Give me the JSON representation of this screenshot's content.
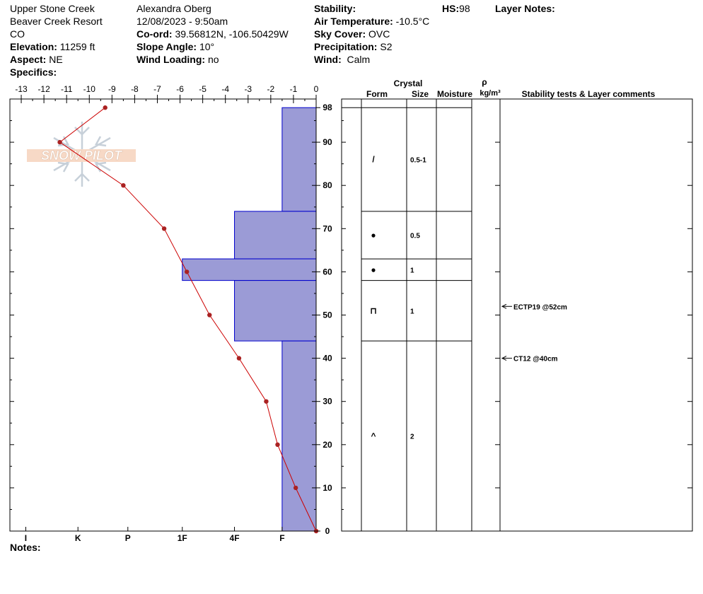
{
  "header": {
    "location": "Upper Stone Creek",
    "area": "Beaver Creek Resort",
    "state": "CO",
    "elevation_label": "Elevation:",
    "elevation_value": "11259 ft",
    "aspect_label": "Aspect:",
    "aspect_value": "NE",
    "specifics_label": "Specifics:",
    "observer": "Alexandra Oberg",
    "datetime": "12/08/2023 - 9:50am",
    "coord_label": "Co-ord:",
    "coord_value": "39.56812N, -106.50429W",
    "slope_label": "Slope Angle:",
    "slope_value": "10°",
    "windload_label": "Wind Loading:",
    "windload_value": "no",
    "stability_label": "Stability:",
    "airtemp_label": "Air Temperature:",
    "airtemp_value": "-10.5°C",
    "sky_label": "Sky Cover:",
    "sky_value": "OVC",
    "precip_label": "Precipitation:",
    "precip_value": "S2",
    "wind_label": "Wind:",
    "wind_value": "Calm",
    "hs_label": "HS:",
    "hs_value": "98",
    "layer_notes_label": "Layer Notes:",
    "notes_label": "Notes:"
  },
  "logo": {
    "text": "SNOW PILOT"
  },
  "table_headers": {
    "crystal": "Crystal",
    "form": "Form",
    "size": "Size",
    "moisture": "Moisture",
    "rho": "ρ",
    "density_unit": "kg/m³",
    "stability": "Stability tests & Layer comments"
  },
  "colors": {
    "hardness_fill": "#9b9bd6",
    "hardness_stroke": "#0000cc",
    "temp_line": "#cc0000",
    "temp_point": "#aa2222"
  },
  "chart_data": {
    "type": "line",
    "temp_axis": {
      "ticks": [
        -13,
        -12,
        -11,
        -10,
        -9,
        -8,
        -7,
        -6,
        -5,
        -4,
        -3,
        -2,
        -1,
        0
      ],
      "range": [
        -13.5,
        0
      ]
    },
    "depth_axis": {
      "ticks": [
        0,
        10,
        20,
        30,
        40,
        50,
        60,
        70,
        80,
        90,
        98
      ],
      "range": [
        0,
        100
      ]
    },
    "hardness_axis": {
      "labels": [
        "I",
        "K",
        "P",
        "1F",
        "4F",
        "F"
      ],
      "temp_values": [
        -12.8,
        -10.5,
        -8.3,
        -5.9,
        -3.6,
        -1.5
      ]
    },
    "temperature_profile": [
      {
        "depth": 98,
        "temp": -9.3
      },
      {
        "depth": 90,
        "temp": -11.3
      },
      {
        "depth": 80,
        "temp": -8.5
      },
      {
        "depth": 70,
        "temp": -6.7
      },
      {
        "depth": 60,
        "temp": -5.7
      },
      {
        "depth": 50,
        "temp": -4.7
      },
      {
        "depth": 40,
        "temp": -3.4
      },
      {
        "depth": 30,
        "temp": -2.2
      },
      {
        "depth": 20,
        "temp": -1.7
      },
      {
        "depth": 10,
        "temp": -0.9
      },
      {
        "depth": 0,
        "temp": 0
      }
    ],
    "layers": [
      {
        "top": 98,
        "bottom": 74,
        "hardness": "F",
        "form": "/",
        "size": "0.5-1"
      },
      {
        "top": 74,
        "bottom": 63,
        "hardness": "4F",
        "form": "●",
        "size": "0.5"
      },
      {
        "top": 63,
        "bottom": 58,
        "hardness": "1F",
        "form": "●",
        "size": "1"
      },
      {
        "top": 58,
        "bottom": 44,
        "hardness": "4F",
        "form": "⊓",
        "size": "1"
      },
      {
        "top": 44,
        "bottom": 0,
        "hardness": "F",
        "form": "^",
        "size": "2"
      }
    ],
    "tests": [
      {
        "depth": 52,
        "text": "ECTP19 @52cm"
      },
      {
        "depth": 40,
        "text": "CT12 @40cm"
      }
    ]
  }
}
